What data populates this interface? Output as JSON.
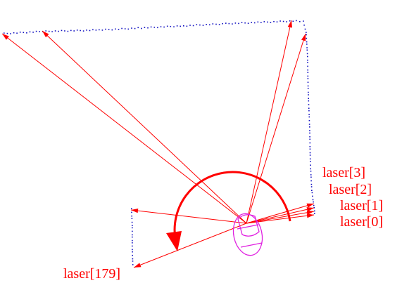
{
  "colors": {
    "background": "#ffffff",
    "laser_ray": "#ff0000",
    "scan_points": "#1010c0",
    "robot_outline": "#e020e0",
    "sweep_arc": "#ff0000"
  },
  "labels": {
    "laser_3": "laser[3]",
    "laser_2": "laser[2]",
    "laser_1": "laser[1]",
    "laser_0": "laser[0]",
    "laser_179": "laser[179]"
  }
}
